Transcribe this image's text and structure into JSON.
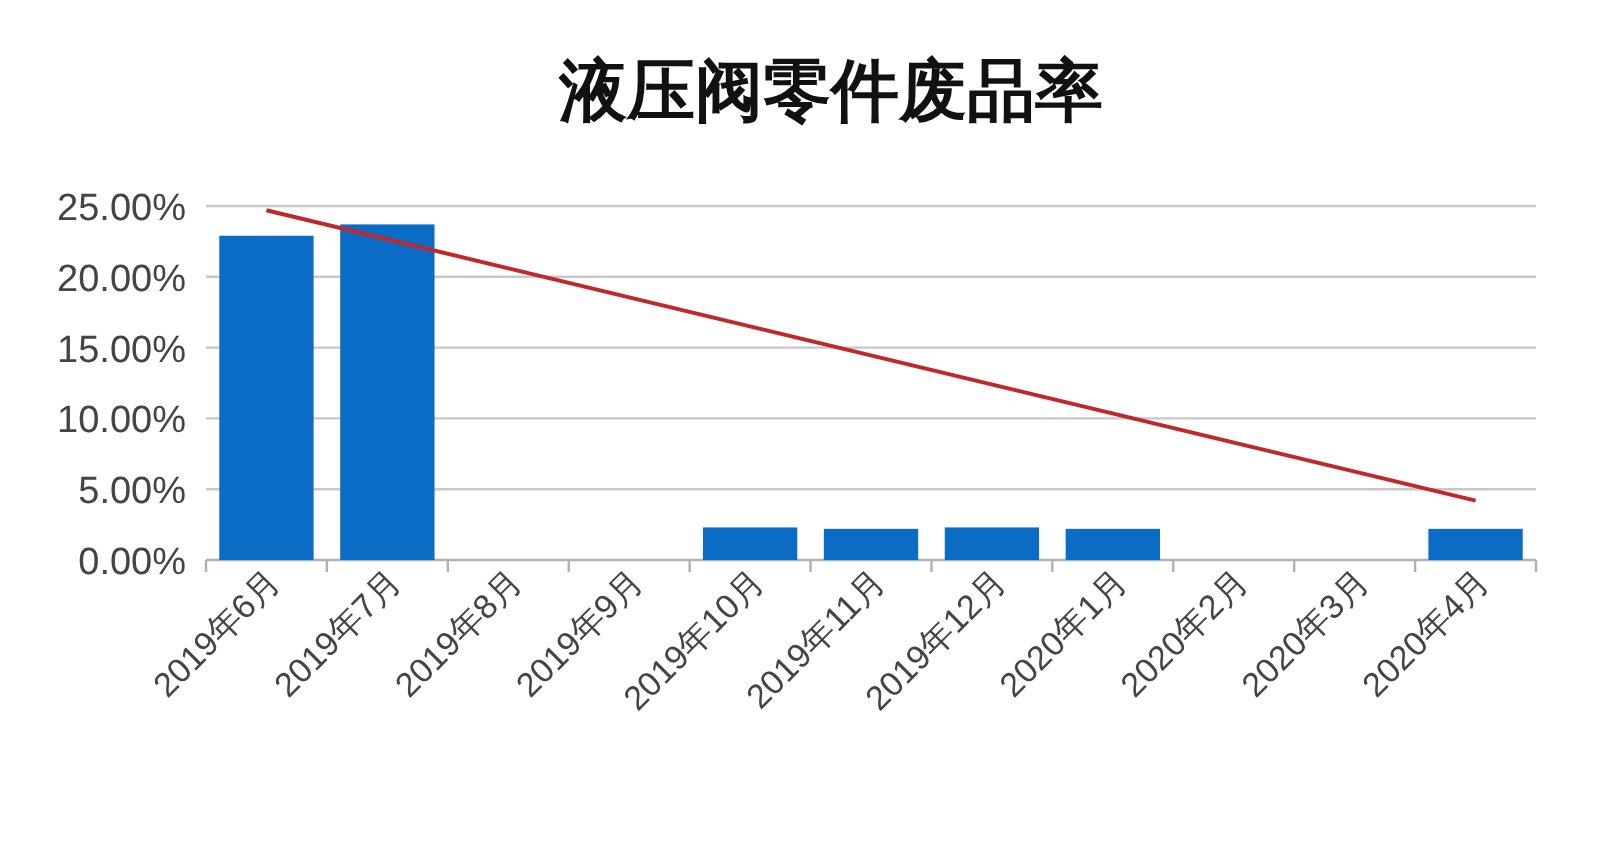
{
  "chart_data": {
    "type": "bar",
    "title": "液压阀零件废品率",
    "categories": [
      "2019年6月",
      "2019年7月",
      "2019年8月",
      "2019年9月",
      "2019年10月",
      "2019年11月",
      "2019年12月",
      "2020年1月",
      "2020年2月",
      "2020年3月",
      "2020年4月"
    ],
    "series": [
      {
        "color": "#0a6cc4",
        "values": [
          22.9,
          23.7,
          null,
          null,
          2.3,
          2.2,
          2.3,
          2.2,
          null,
          null,
          2.2
        ]
      },
      {
        "type": "line",
        "color": "#c0282a",
        "x": [
          "2019年6月",
          "2020年4月"
        ],
        "values": [
          24.7,
          4.2
        ]
      }
    ],
    "ylim": [
      0,
      25
    ],
    "yticks": [
      {
        "value": 0,
        "label": "0.00%"
      },
      {
        "value": 5,
        "label": "5.00%"
      },
      {
        "value": 10,
        "label": "10.00%"
      },
      {
        "value": 15,
        "label": "15.00%"
      },
      {
        "value": 20,
        "label": "20.00%"
      },
      {
        "value": 25,
        "label": "25.00%"
      }
    ],
    "grid": "y"
  }
}
